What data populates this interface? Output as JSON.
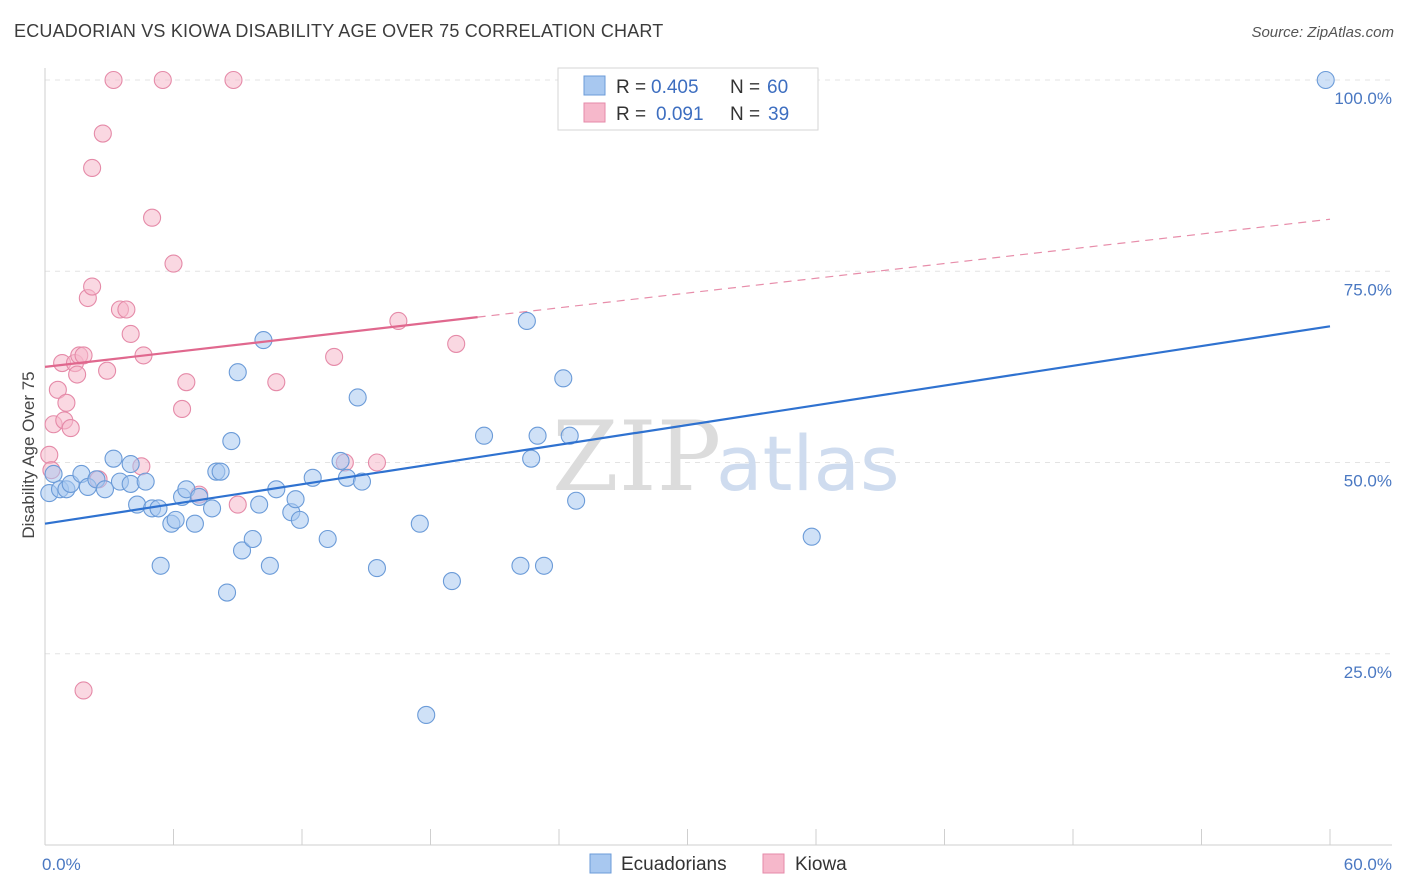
{
  "title": "ECUADORIAN VS KIOWA DISABILITY AGE OVER 75 CORRELATION CHART",
  "source": "Source: ZipAtlas.com",
  "watermark": {
    "zip": "ZIP",
    "atlas": "atlas"
  },
  "legend": {
    "r_label": "R =",
    "n_label": "N =",
    "items": [
      {
        "r": "0.405",
        "n": "60"
      },
      {
        "r": "0.091",
        "n": "39"
      }
    ]
  },
  "colors": {
    "blue_fill": "#a8c8f0",
    "blue_stroke": "#6b9bd8",
    "blue_line": "#2f72d0",
    "pink_fill": "#f6b8cb",
    "pink_stroke": "#e58aa8",
    "pink_line": "#e0688e",
    "grid": "#e3e3e3",
    "axis_text": "#4a78c2"
  },
  "chart_data": {
    "type": "scatter",
    "title": "ECUADORIAN VS KIOWA DISABILITY AGE OVER 75 CORRELATION CHART",
    "xlabel": "",
    "ylabel": "Disability Age Over 75",
    "xlim": [
      0,
      60
    ],
    "ylim": [
      0,
      100
    ],
    "x_tick_labels": [
      "0.0%",
      "60.0%"
    ],
    "y_tick_labels": [
      "100.0%",
      "75.0%",
      "50.0%",
      "25.0%"
    ],
    "y_tick_values": [
      100,
      75,
      50,
      25
    ],
    "legend_bottom": [
      "Ecuadorians",
      "Kiowa"
    ],
    "series": [
      {
        "name": "Ecuadorians",
        "color": "#a8c8f0",
        "trend": {
          "x": [
            0,
            60
          ],
          "y": [
            42,
            67.8
          ],
          "style": "solid"
        },
        "points": [
          [
            0.2,
            46
          ],
          [
            0.4,
            48.5
          ],
          [
            0.7,
            46.5
          ],
          [
            1.0,
            46.5
          ],
          [
            1.2,
            47.2
          ],
          [
            1.7,
            48.5
          ],
          [
            2.0,
            46.8
          ],
          [
            2.4,
            47.8
          ],
          [
            2.8,
            46.5
          ],
          [
            3.2,
            50.5
          ],
          [
            3.5,
            47.5
          ],
          [
            4.0,
            47.2
          ],
          [
            4.0,
            49.8
          ],
          [
            4.3,
            44.5
          ],
          [
            4.7,
            47.5
          ],
          [
            5.0,
            44
          ],
          [
            5.3,
            44
          ],
          [
            5.4,
            36.5
          ],
          [
            5.9,
            42
          ],
          [
            6.1,
            42.5
          ],
          [
            6.4,
            45.5
          ],
          [
            6.6,
            46.5
          ],
          [
            7.0,
            42
          ],
          [
            7.2,
            45.5
          ],
          [
            7.8,
            44
          ],
          [
            8.0,
            48.8
          ],
          [
            8.2,
            48.8
          ],
          [
            8.5,
            33
          ],
          [
            8.7,
            52.8
          ],
          [
            9.0,
            61.8
          ],
          [
            9.2,
            38.5
          ],
          [
            9.7,
            40
          ],
          [
            10.0,
            44.5
          ],
          [
            10.2,
            66
          ],
          [
            10.5,
            36.5
          ],
          [
            10.8,
            46.5
          ],
          [
            11.5,
            43.5
          ],
          [
            11.7,
            45.2
          ],
          [
            11.9,
            42.5
          ],
          [
            12.5,
            48
          ],
          [
            13.2,
            40
          ],
          [
            13.8,
            50.2
          ],
          [
            14.1,
            48
          ],
          [
            14.6,
            58.5
          ],
          [
            14.8,
            47.5
          ],
          [
            15.5,
            36.2
          ],
          [
            17.5,
            42
          ],
          [
            17.8,
            17
          ],
          [
            19.0,
            34.5
          ],
          [
            20.5,
            53.5
          ],
          [
            22.2,
            36.5
          ],
          [
            22.5,
            68.5
          ],
          [
            22.7,
            50.5
          ],
          [
            23.0,
            53.5
          ],
          [
            23.3,
            36.5
          ],
          [
            24.2,
            61
          ],
          [
            24.5,
            53.5
          ],
          [
            24.8,
            45
          ],
          [
            35.8,
            40.3
          ],
          [
            59.8,
            100
          ]
        ]
      },
      {
        "name": "Kiowa",
        "color": "#f6b8cb",
        "trend": {
          "x": [
            0,
            20.2
          ],
          "y": [
            62.5,
            69
          ],
          "style": "solid"
        },
        "trend_ext": {
          "x": [
            20.2,
            60
          ],
          "y": [
            69,
            81.8
          ],
          "style": "dashed"
        },
        "points": [
          [
            0.2,
            51
          ],
          [
            0.3,
            49
          ],
          [
            0.4,
            55
          ],
          [
            0.6,
            59.5
          ],
          [
            0.8,
            63
          ],
          [
            0.9,
            55.5
          ],
          [
            1.0,
            57.8
          ],
          [
            1.2,
            54.5
          ],
          [
            1.4,
            63
          ],
          [
            1.5,
            61.5
          ],
          [
            1.6,
            64
          ],
          [
            1.8,
            64
          ],
          [
            1.8,
            20.2
          ],
          [
            2.0,
            71.5
          ],
          [
            2.2,
            73
          ],
          [
            2.2,
            88.5
          ],
          [
            2.5,
            47.8
          ],
          [
            2.7,
            93
          ],
          [
            2.9,
            62
          ],
          [
            3.2,
            100
          ],
          [
            3.5,
            70
          ],
          [
            3.8,
            70
          ],
          [
            4.0,
            66.8
          ],
          [
            4.5,
            49.5
          ],
          [
            4.6,
            64
          ],
          [
            5.0,
            82
          ],
          [
            5.5,
            100
          ],
          [
            6.0,
            76
          ],
          [
            6.4,
            57
          ],
          [
            6.6,
            60.5
          ],
          [
            7.2,
            45.8
          ],
          [
            8.8,
            100
          ],
          [
            9.0,
            44.5
          ],
          [
            10.8,
            60.5
          ],
          [
            13.5,
            63.8
          ],
          [
            14.0,
            50
          ],
          [
            15.5,
            50
          ],
          [
            16.5,
            68.5
          ],
          [
            19.2,
            65.5
          ]
        ]
      }
    ]
  }
}
